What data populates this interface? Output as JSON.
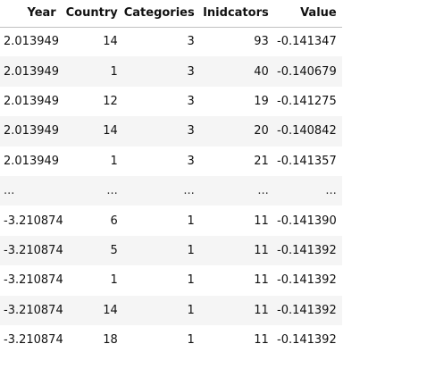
{
  "table": {
    "headers": [
      "Year",
      "Country",
      "Categories",
      "Inidcators",
      "Value"
    ],
    "rows": [
      [
        "2.013949",
        "14",
        "3",
        "93",
        "-0.141347"
      ],
      [
        "2.013949",
        "1",
        "3",
        "40",
        "-0.140679"
      ],
      [
        "2.013949",
        "12",
        "3",
        "19",
        "-0.141275"
      ],
      [
        "2.013949",
        "14",
        "3",
        "20",
        "-0.140842"
      ],
      [
        "2.013949",
        "1",
        "3",
        "21",
        "-0.141357"
      ],
      [
        "...",
        "...",
        "...",
        "...",
        "..."
      ],
      [
        "-3.210874",
        "6",
        "1",
        "11",
        "-0.141390"
      ],
      [
        "-3.210874",
        "5",
        "1",
        "11",
        "-0.141392"
      ],
      [
        "-3.210874",
        "1",
        "1",
        "11",
        "-0.141392"
      ],
      [
        "-3.210874",
        "14",
        "1",
        "11",
        "-0.141392"
      ],
      [
        "-3.210874",
        "18",
        "1",
        "11",
        "-0.141392"
      ]
    ]
  }
}
